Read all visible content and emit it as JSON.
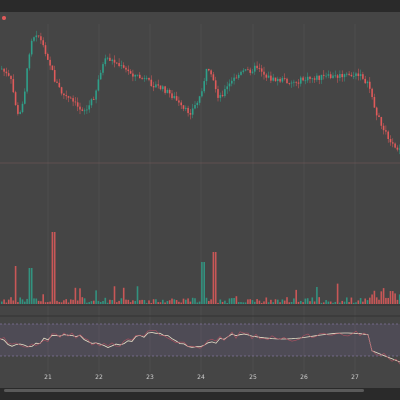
{
  "legend": {
    "symbol": "",
    "values": [
      "",
      "",
      "",
      ""
    ],
    "change": ""
  },
  "date_axis": {
    "labels": [
      "21",
      "22",
      "23",
      "24",
      "25",
      "26",
      "27"
    ]
  },
  "colors": {
    "background": "#454545",
    "up": "#2fa08a",
    "down": "#e05a5a",
    "rsi_line": "#e8e0c8",
    "rsi_band": "#7c6aa3",
    "grid": "#5a5a5a"
  },
  "chart_data": {
    "type": "candlestick",
    "x_labels": [
      "21",
      "22",
      "23",
      "24",
      "25",
      "26",
      "27"
    ],
    "grid": true,
    "panels": [
      "price",
      "volume",
      "rsi"
    ]
  }
}
